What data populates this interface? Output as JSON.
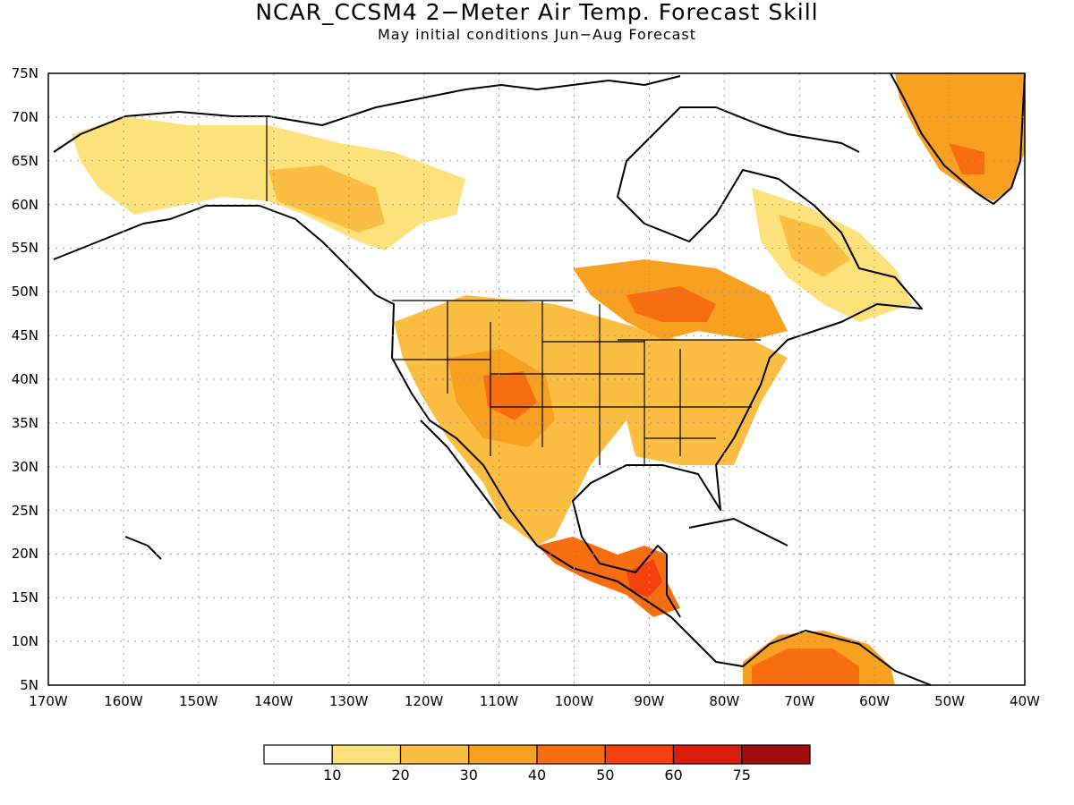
{
  "title": "NCAR_CCSM4 2−Meter Air Temp. Forecast Skill",
  "subtitle": "May initial conditions  Jun−Aug Forecast",
  "lat_labels": [
    "75N",
    "70N",
    "65N",
    "60N",
    "55N",
    "50N",
    "45N",
    "40N",
    "35N",
    "30N",
    "25N",
    "20N",
    "15N",
    "10N",
    "5N"
  ],
  "lon_labels": [
    "170W",
    "160W",
    "150W",
    "140W",
    "130W",
    "120W",
    "110W",
    "100W",
    "90W",
    "80W",
    "70W",
    "60W",
    "50W",
    "40W"
  ],
  "colorbar": {
    "colors": [
      "#ffffff",
      "#fde17a",
      "#fbbd42",
      "#f8a01f",
      "#f76d10",
      "#f3400d",
      "#dc1d0d",
      "#a10c0c"
    ],
    "labels": [
      "10",
      "20",
      "30",
      "40",
      "50",
      "60",
      "75"
    ]
  }
}
